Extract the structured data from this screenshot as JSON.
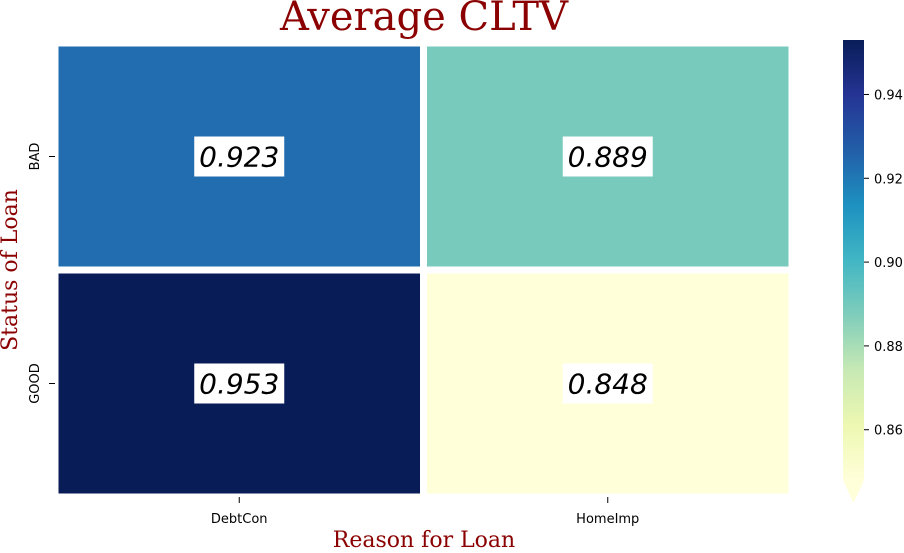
{
  "chart_data": {
    "type": "heatmap",
    "title": "Average CLTV",
    "xlabel": "Reason for Loan",
    "ylabel": "Status of Loan",
    "x_categories": [
      "DebtCon",
      "HomeImp"
    ],
    "y_categories": [
      "BAD",
      "GOOD"
    ],
    "values": [
      [
        0.923,
        0.889
      ],
      [
        0.953,
        0.848
      ]
    ],
    "value_labels": [
      [
        "0.923",
        "0.889"
      ],
      [
        "0.953",
        "0.848"
      ]
    ],
    "colormap": "YlGnBu",
    "colorbar": {
      "range": [
        0.848,
        0.953
      ],
      "ticks": [
        0.86,
        0.88,
        0.9,
        0.92,
        0.94
      ],
      "tick_labels": [
        "0.86",
        "0.88",
        "0.90",
        "0.92",
        "0.94"
      ],
      "extend": "min"
    },
    "colors": {
      "title": "#8b0000",
      "axis_label": "#8b0000",
      "annotation_box": "#ffffff",
      "cell_border": "#ffffff"
    }
  }
}
